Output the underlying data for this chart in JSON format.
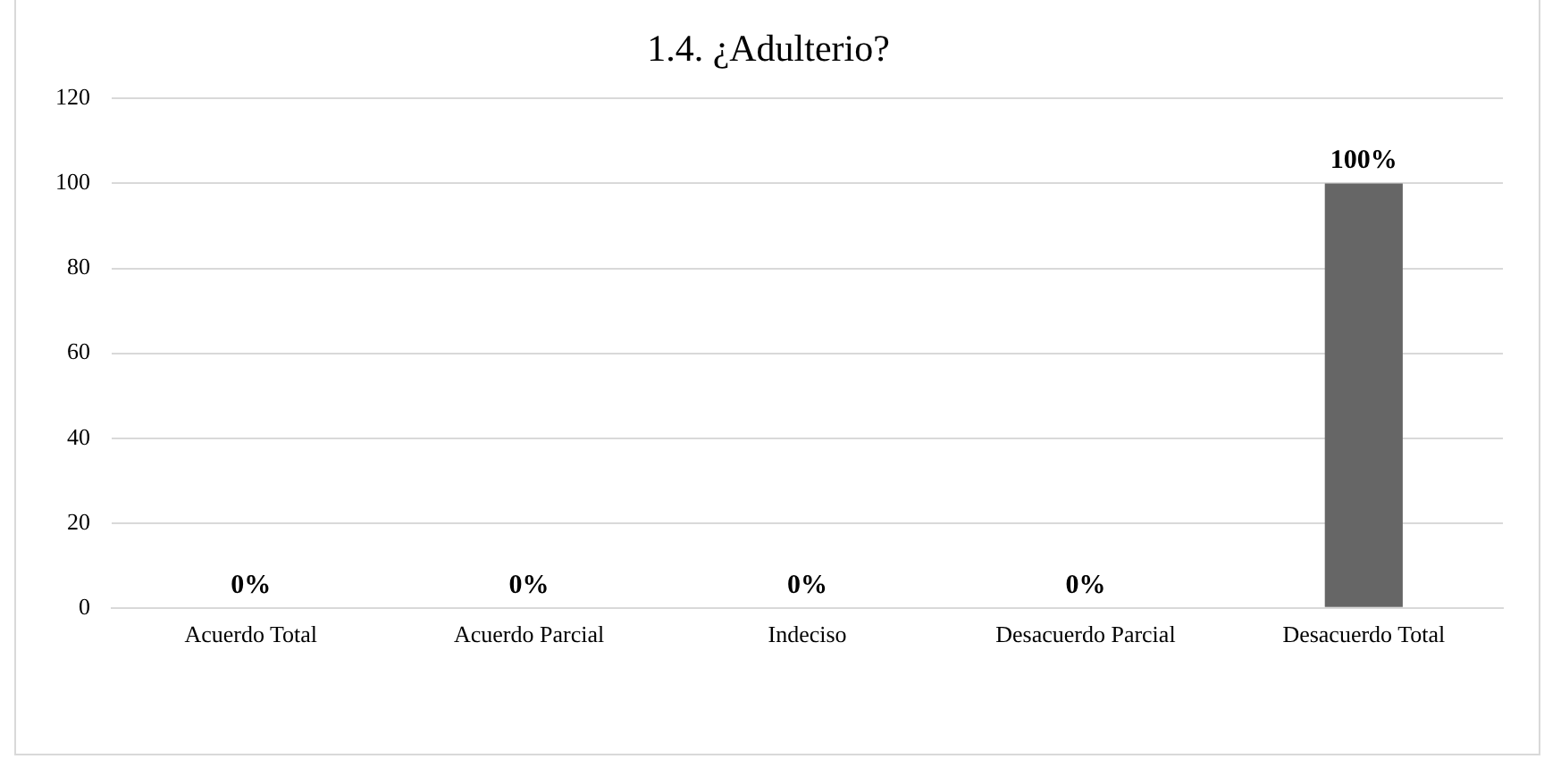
{
  "chart_data": {
    "type": "bar",
    "title": "1.4. ¿Adulterio?",
    "categories": [
      "Acuerdo Total",
      "Acuerdo Parcial",
      "Indeciso",
      "Desacuerdo Parcial",
      "Desacuerdo Total"
    ],
    "values": [
      0,
      0,
      0,
      0,
      100
    ],
    "value_labels": [
      "0%",
      "0%",
      "0%",
      "0%",
      "100%"
    ],
    "color": "#666666",
    "ylim": [
      0,
      120
    ],
    "yticks": [
      0,
      20,
      40,
      60,
      80,
      100,
      120
    ],
    "grid": "y",
    "legend": false
  }
}
